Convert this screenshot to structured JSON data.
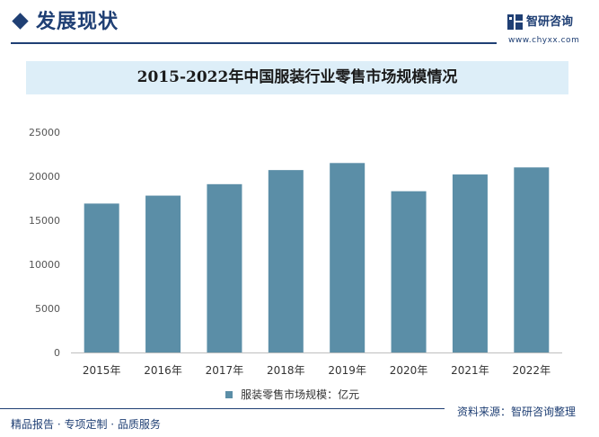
{
  "header": {
    "section_title": "发展现状",
    "logo_text": "智研咨询",
    "logo_url": "www.chyxx.com"
  },
  "colors": {
    "brand": "#1f3f74",
    "bar": "#5b8ea7",
    "title_band": "#ddeef8"
  },
  "chart_data": {
    "type": "bar",
    "title": "2015-2022年中国服装行业零售市场规模情况",
    "categories": [
      "2015年",
      "2016年",
      "2017年",
      "2018年",
      "2019年",
      "2020年",
      "2021年",
      "2022年"
    ],
    "series": [
      {
        "name": "服装零售市场规模：亿元",
        "values": [
          16900,
          17800,
          19100,
          20700,
          21500,
          18300,
          20200,
          21000
        ]
      }
    ],
    "ylim": [
      0,
      25000
    ],
    "yticks": [
      "0",
      "5000",
      "10000",
      "15000",
      "20000",
      "25000"
    ],
    "xlabel": "",
    "ylabel": "",
    "grid": false,
    "legend": "bottom"
  },
  "footer": {
    "left": "精品报告 · 专项定制 · 品质服务",
    "right": "资料来源：智研咨询整理"
  }
}
